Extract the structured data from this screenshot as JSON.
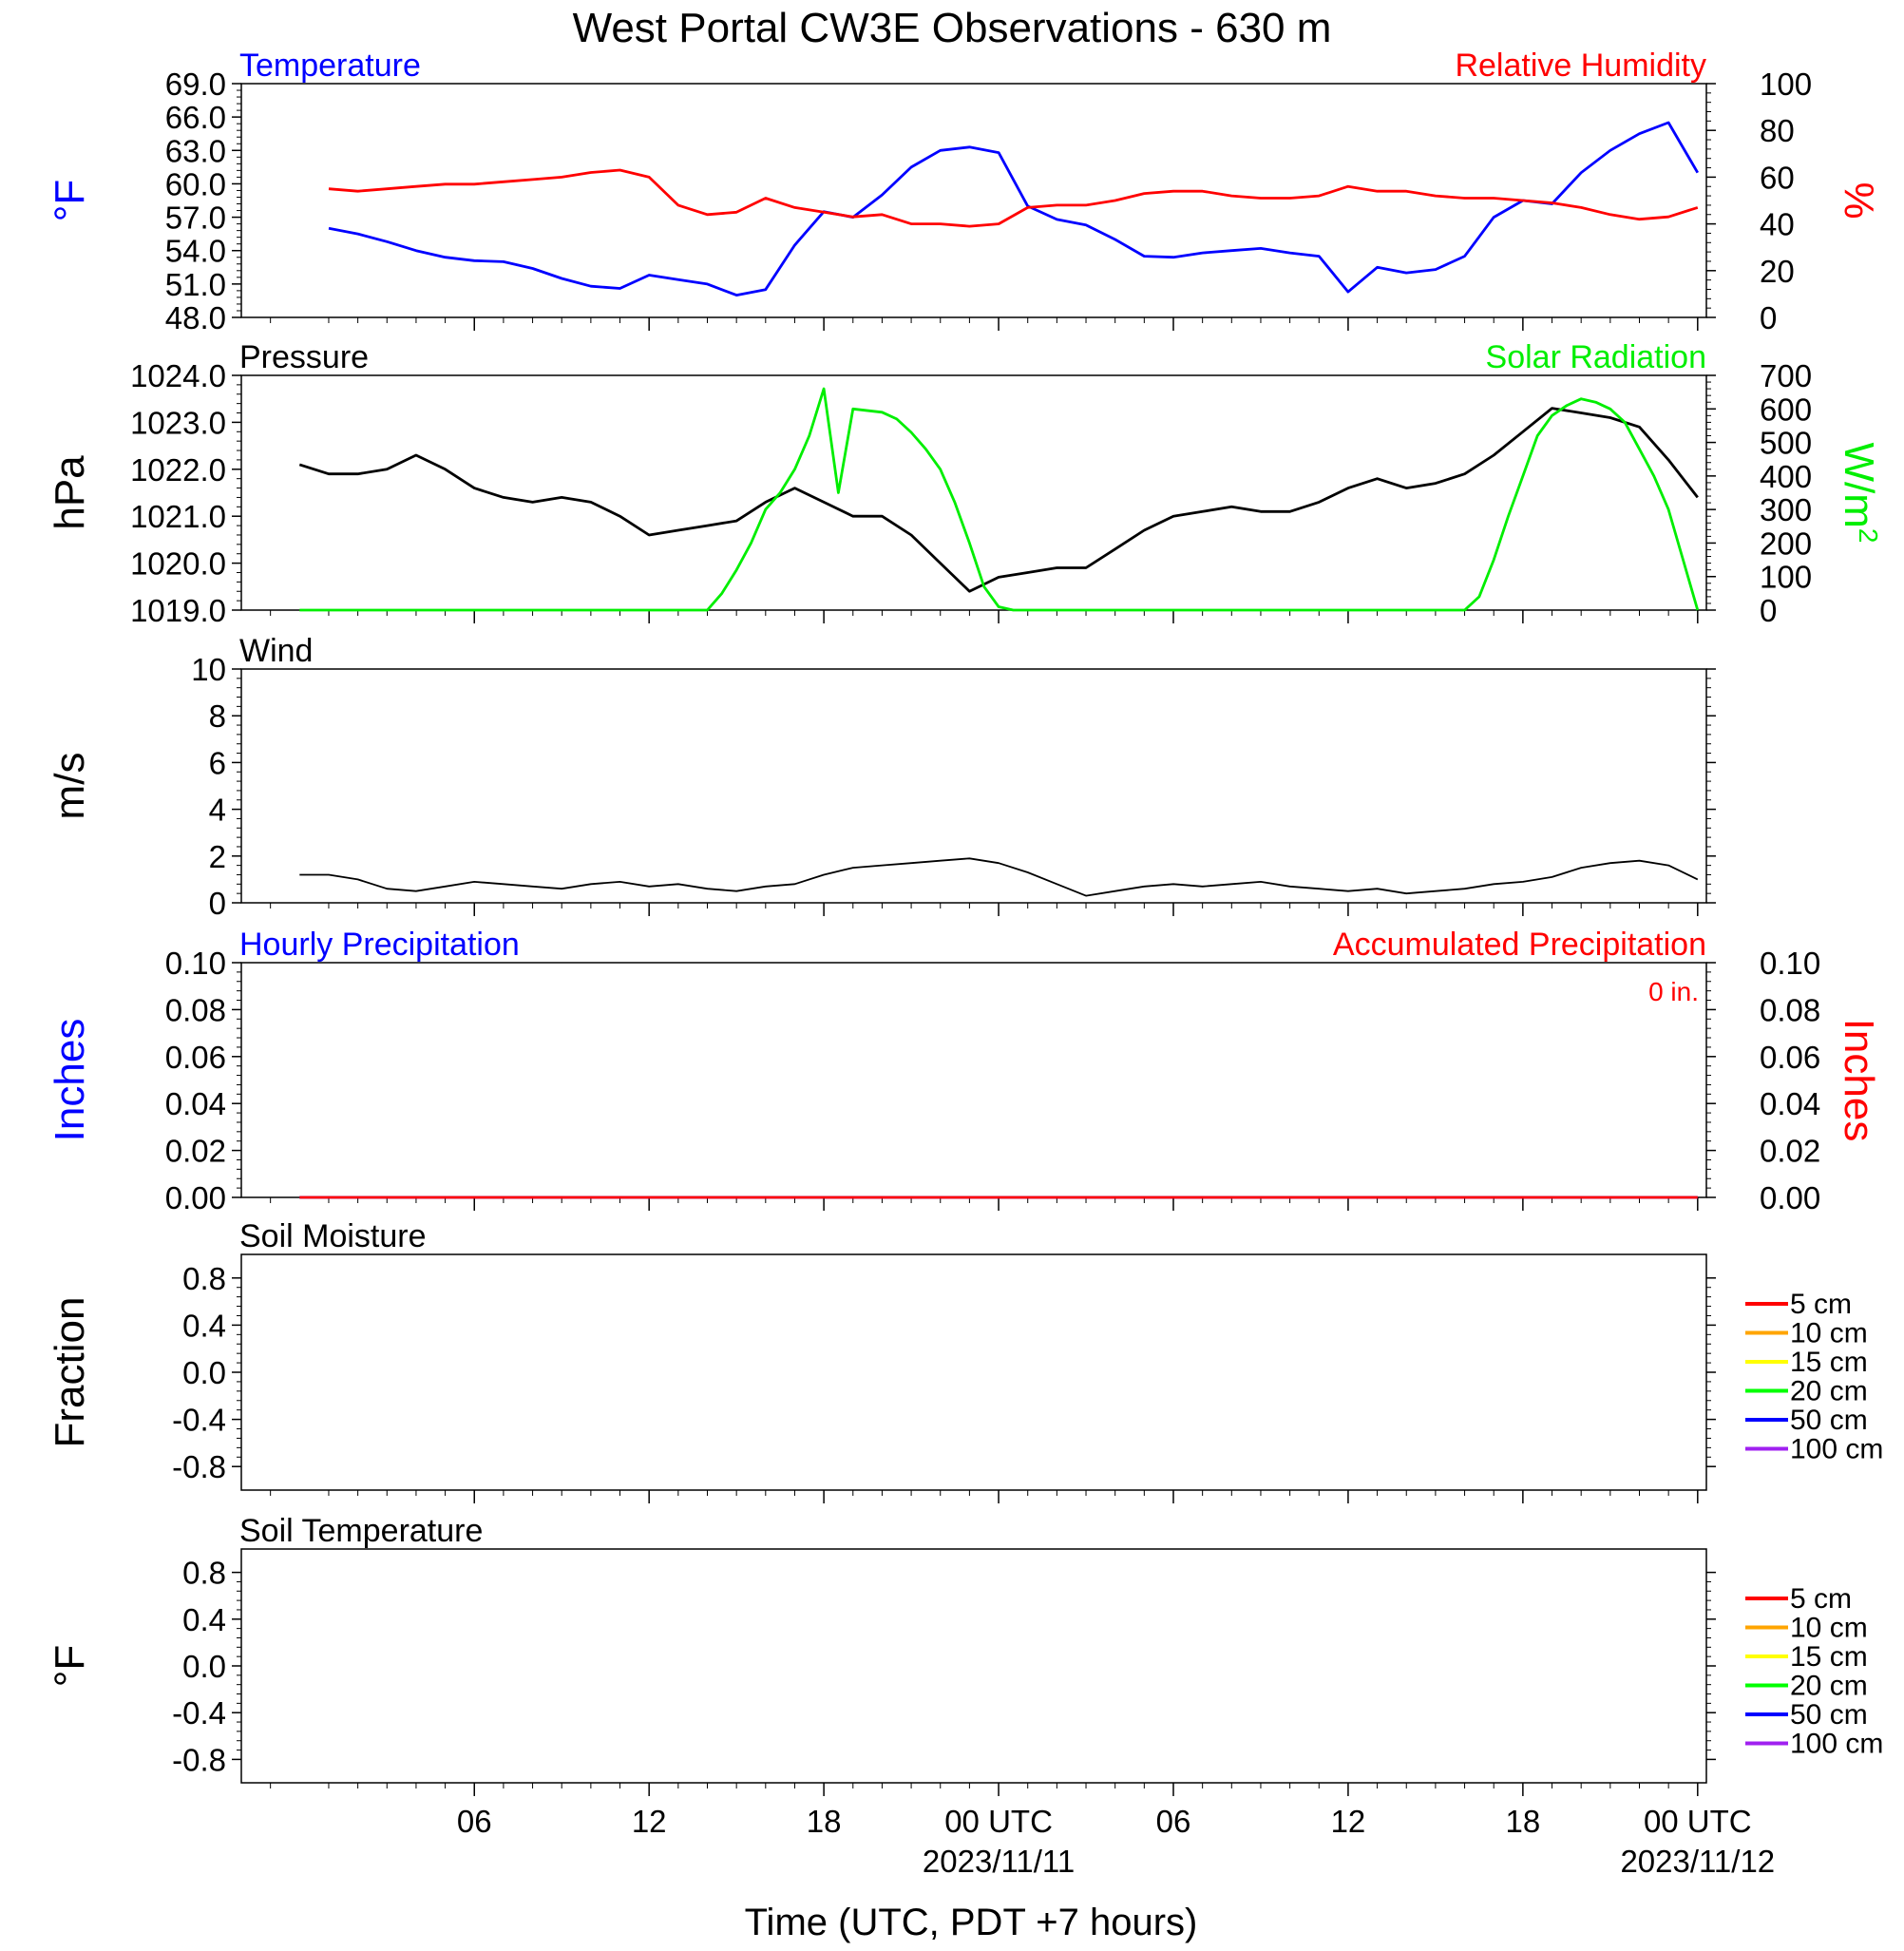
{
  "title": "West Portal CW3E Observations - 630 m",
  "colors": {
    "temperature": "#0000ff",
    "humidity": "#ff0000",
    "pressure": "#000000",
    "solar": "#00ee00",
    "wind": "#000000",
    "barb": "#ff0000",
    "precip_hourly": "#0000ff",
    "precip_accum": "#ff0000"
  },
  "x_axis": {
    "xlabel": "Time (UTC, PDT +7 hours)",
    "ticks": [
      {
        "hour": 6,
        "label": "06",
        "date": ""
      },
      {
        "hour": 12,
        "label": "12",
        "date": ""
      },
      {
        "hour": 18,
        "label": "18",
        "date": ""
      },
      {
        "hour": 24,
        "label": "00 UTC",
        "date": "2023/11/11"
      },
      {
        "hour": 30,
        "label": "06",
        "date": ""
      },
      {
        "hour": 36,
        "label": "12",
        "date": ""
      },
      {
        "hour": 42,
        "label": "18",
        "date": ""
      },
      {
        "hour": 48,
        "label": "00 UTC",
        "date": "2023/11/12"
      }
    ]
  },
  "chart_data": [
    {
      "id": "temp-rh",
      "type": "line",
      "title_left": "Temperature",
      "title_right": "Relative Humidity",
      "ylabel_left": "°F",
      "ylabel_right": "%",
      "ylim_left": [
        48,
        69
      ],
      "ylim_right": [
        0,
        100
      ],
      "yticks_left": [
        "69.0",
        "66.0",
        "63.0",
        "60.0",
        "57.0",
        "54.0",
        "51.0",
        "48.0"
      ],
      "yticks_right": [
        "100",
        "80",
        "60",
        "40",
        "20",
        "0"
      ],
      "series": [
        {
          "name": "Temperature",
          "axis": "left",
          "color_key": "temperature",
          "x": [
            1,
            2,
            3,
            4,
            5,
            6,
            7,
            8,
            9,
            10,
            11,
            12,
            13,
            14,
            15,
            16,
            17,
            18,
            19,
            20,
            21,
            22,
            23,
            24,
            25,
            26,
            27,
            28,
            29,
            30,
            31,
            32,
            33,
            34,
            35,
            36,
            37,
            38,
            39,
            40,
            41,
            42,
            43,
            44,
            45,
            46,
            47,
            48
          ],
          "y": [
            56.0,
            55.5,
            54.8,
            54.0,
            53.4,
            53.1,
            53.0,
            52.4,
            51.5,
            50.8,
            50.6,
            51.8,
            51.4,
            51.0,
            50.0,
            50.5,
            54.5,
            57.5,
            57.0,
            59.0,
            61.5,
            63.0,
            63.3,
            62.8,
            58.0,
            56.8,
            56.3,
            55.0,
            53.5,
            53.4,
            53.8,
            54.0,
            54.2,
            53.8,
            53.5,
            50.3,
            52.5,
            52.0,
            52.3,
            53.5,
            57.0,
            58.5,
            58.2,
            61.0,
            63.0,
            64.5,
            65.5,
            61.0
          ]
        },
        {
          "name": "Relative Humidity",
          "axis": "right",
          "color_key": "humidity",
          "x": [
            1,
            2,
            3,
            4,
            5,
            6,
            7,
            8,
            9,
            10,
            11,
            12,
            13,
            14,
            15,
            16,
            17,
            18,
            19,
            20,
            21,
            22,
            23,
            24,
            25,
            26,
            27,
            28,
            29,
            30,
            31,
            32,
            33,
            34,
            35,
            36,
            37,
            38,
            39,
            40,
            41,
            42,
            43,
            44,
            45,
            46,
            47,
            48
          ],
          "y": [
            55,
            54,
            55,
            56,
            57,
            57,
            58,
            59,
            60,
            62,
            63,
            60,
            48,
            44,
            45,
            51,
            47,
            45,
            43,
            44,
            40,
            40,
            39,
            40,
            47,
            48,
            48,
            50,
            53,
            54,
            54,
            52,
            51,
            51,
            52,
            56,
            54,
            54,
            52,
            51,
            51,
            50,
            49,
            47,
            44,
            42,
            43,
            47
          ]
        }
      ]
    },
    {
      "id": "pressure-solar",
      "type": "line",
      "title_left": "Pressure",
      "title_right": "Solar Radiation",
      "ylabel_left": "hPa",
      "ylabel_right": "W/m",
      "ylabel_right_sup": "2",
      "ylim_left": [
        1019,
        1024
      ],
      "ylim_right": [
        0,
        700
      ],
      "yticks_left": [
        "1024.0",
        "1023.0",
        "1022.0",
        "1021.0",
        "1020.0",
        "1019.0"
      ],
      "yticks_right": [
        "700",
        "600",
        "500",
        "400",
        "300",
        "200",
        "100",
        "0"
      ],
      "series": [
        {
          "name": "Pressure",
          "axis": "left",
          "color_key": "pressure",
          "x": [
            0,
            1,
            2,
            3,
            4,
            5,
            6,
            7,
            8,
            9,
            10,
            11,
            12,
            13,
            14,
            15,
            16,
            17,
            18,
            19,
            20,
            21,
            22,
            23,
            24,
            25,
            26,
            27,
            28,
            29,
            30,
            31,
            32,
            33,
            34,
            35,
            36,
            37,
            38,
            39,
            40,
            41,
            42,
            43,
            44,
            45,
            46,
            47,
            48
          ],
          "y": [
            1022.1,
            1021.9,
            1021.9,
            1022.0,
            1022.3,
            1022.0,
            1021.6,
            1021.4,
            1021.3,
            1021.4,
            1021.3,
            1021.0,
            1020.6,
            1020.7,
            1020.8,
            1020.9,
            1021.3,
            1021.6,
            1021.3,
            1021.0,
            1021.0,
            1020.6,
            1020.0,
            1019.4,
            1019.7,
            1019.8,
            1019.9,
            1019.9,
            1020.3,
            1020.7,
            1021.0,
            1021.1,
            1021.2,
            1021.1,
            1021.1,
            1021.3,
            1021.6,
            1021.8,
            1021.6,
            1021.7,
            1021.9,
            1022.3,
            1022.8,
            1023.3,
            1023.2,
            1023.1,
            1022.9,
            1022.2,
            1021.4
          ]
        },
        {
          "name": "Solar Radiation",
          "axis": "right",
          "color_key": "solar",
          "x": [
            0,
            14,
            14.5,
            15,
            15.5,
            16,
            16.5,
            17,
            17.5,
            18,
            18.5,
            19,
            20,
            20.5,
            21,
            21.5,
            22,
            22.5,
            23,
            23.5,
            24,
            24.5,
            25,
            26,
            40,
            40.5,
            41,
            41.5,
            42,
            42.5,
            43,
            43.5,
            44,
            44.5,
            45,
            45.5,
            46,
            46.5,
            47,
            47.5,
            48
          ],
          "y": [
            0,
            0,
            50,
            120,
            200,
            300,
            350,
            420,
            520,
            660,
            350,
            600,
            590,
            570,
            530,
            480,
            420,
            320,
            200,
            70,
            10,
            0,
            0,
            0,
            0,
            40,
            150,
            280,
            400,
            520,
            580,
            610,
            630,
            620,
            600,
            560,
            480,
            400,
            300,
            150,
            0
          ]
        }
      ]
    },
    {
      "id": "wind",
      "type": "line",
      "title_left": "Wind",
      "ylabel_left": "m/s",
      "ylim_left": [
        0,
        10
      ],
      "yticks_left": [
        "10",
        "8",
        "6",
        "4",
        "2",
        "0"
      ],
      "series": [
        {
          "name": "Wind",
          "axis": "left",
          "color_key": "wind",
          "x": [
            0,
            1,
            2,
            3,
            4,
            5,
            6,
            7,
            8,
            9,
            10,
            11,
            12,
            13,
            14,
            15,
            16,
            17,
            18,
            19,
            20,
            21,
            22,
            23,
            24,
            25,
            26,
            27,
            28,
            29,
            30,
            31,
            32,
            33,
            34,
            35,
            36,
            37,
            38,
            39,
            40,
            41,
            42,
            43,
            44,
            45,
            46,
            47,
            48
          ],
          "y": [
            1.2,
            1.2,
            1.0,
            0.6,
            0.5,
            0.7,
            0.9,
            0.8,
            0.7,
            0.6,
            0.8,
            0.9,
            0.7,
            0.8,
            0.6,
            0.5,
            0.7,
            0.8,
            1.2,
            1.5,
            1.6,
            1.7,
            1.8,
            1.9,
            1.7,
            1.3,
            0.8,
            0.3,
            0.5,
            0.7,
            0.8,
            0.7,
            0.8,
            0.9,
            0.7,
            0.6,
            0.5,
            0.6,
            0.4,
            0.5,
            0.6,
            0.8,
            0.9,
            1.1,
            1.5,
            1.7,
            1.8,
            1.6,
            1.0
          ]
        }
      ]
    },
    {
      "id": "precip",
      "type": "line",
      "title_left": "Hourly Precipitation",
      "title_right": "Accumulated Precipitation",
      "annotation": "0 in.",
      "ylabel_left": "Inches",
      "ylabel_right": "Inches",
      "ylim_left": [
        0,
        0.1
      ],
      "ylim_right": [
        0,
        0.1
      ],
      "yticks_left": [
        "0.10",
        "0.08",
        "0.06",
        "0.04",
        "0.02",
        "0.00"
      ],
      "yticks_right": [
        "0.10",
        "0.08",
        "0.06",
        "0.04",
        "0.02",
        "0.00"
      ],
      "series": [
        {
          "name": "Hourly Precipitation",
          "axis": "left",
          "color_key": "precip_hourly",
          "x": [
            0,
            48
          ],
          "y": [
            0,
            0
          ]
        },
        {
          "name": "Accumulated Precipitation",
          "axis": "right",
          "color_key": "precip_accum",
          "x": [
            0,
            48
          ],
          "y": [
            0,
            0
          ]
        }
      ]
    },
    {
      "id": "soil-moisture",
      "type": "line",
      "title_left": "Soil Moisture",
      "ylabel_left": "Fraction",
      "ylim_left": [
        -1,
        1
      ],
      "yticks_left": [
        "0.8",
        "0.4",
        "0.0",
        "-0.4",
        "-0.8"
      ],
      "legend": [
        {
          "label": "5 cm",
          "color": "#ff0000"
        },
        {
          "label": "10 cm",
          "color": "#ffa500"
        },
        {
          "label": "15 cm",
          "color": "#ffff00"
        },
        {
          "label": "20 cm",
          "color": "#00ff00"
        },
        {
          "label": "50 cm",
          "color": "#0000ff"
        },
        {
          "label": "100 cm",
          "color": "#a020f0"
        }
      ],
      "series": []
    },
    {
      "id": "soil-temperature",
      "type": "line",
      "title_left": "Soil Temperature",
      "ylabel_left": "°F",
      "ylim_left": [
        -1,
        1
      ],
      "yticks_left": [
        "0.8",
        "0.4",
        "0.0",
        "-0.4",
        "-0.8"
      ],
      "legend": [
        {
          "label": "5 cm",
          "color": "#ff0000"
        },
        {
          "label": "10 cm",
          "color": "#ffa500"
        },
        {
          "label": "15 cm",
          "color": "#ffff00"
        },
        {
          "label": "20 cm",
          "color": "#00ff00"
        },
        {
          "label": "50 cm",
          "color": "#0000ff"
        },
        {
          "label": "100 cm",
          "color": "#a020f0"
        }
      ],
      "series": []
    }
  ]
}
